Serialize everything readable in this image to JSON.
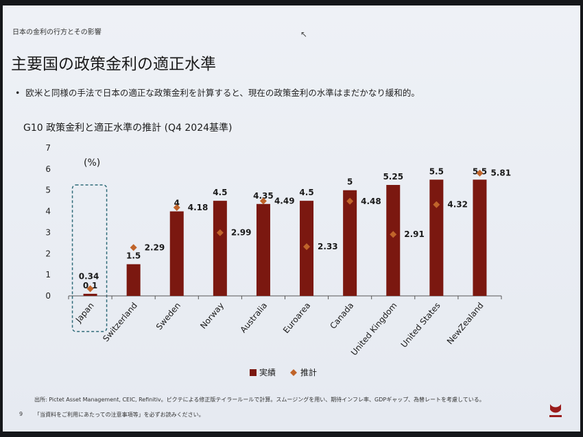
{
  "header": {
    "text": "日本の金利の行方とその影響"
  },
  "slide_title": "主要国の政策金利の適正水準",
  "bullet": "欧米と同様の手法で日本の適正な政策金利を計算すると、現在の政策金利の水準はまだかなり緩和的。",
  "footer": {
    "source": "出所: Pictet Asset Management, CEIC, Refinitiv。ピクテによる修正版テイラールールで計算。スムージングを用い、期待インフレ率、GDPギャップ、為替レートを考慮している。",
    "note": "「当資料をご利用にあたっての注意事項等」を必ずお読みください。",
    "page": "9"
  },
  "colors": {
    "bar": "#7b1810",
    "marker": "#c0642a",
    "highlight_box": "#2d6a78",
    "axis": "#555555"
  },
  "chart_data": {
    "type": "bar",
    "title": "G10 政策金利と適正水準の推計 (Q4 2024基準)",
    "unit_label": "(%)",
    "categories": [
      "Japan",
      "Switzerland",
      "Sweden",
      "Norway",
      "Australia",
      "Euroarea",
      "Canada",
      "United Kingdom",
      "United States",
      "NewZealand"
    ],
    "series": [
      {
        "name": "実績",
        "kind": "bar",
        "values": [
          0.1,
          1.5,
          4,
          4.5,
          4.35,
          4.5,
          5,
          5.25,
          5.5,
          5.5
        ],
        "labels": [
          "0.1",
          "1.5",
          "4",
          "4.5",
          "4.35",
          "4.5",
          "5",
          "5.25",
          "5.5",
          "5.5"
        ]
      },
      {
        "name": "推計",
        "kind": "marker",
        "values": [
          0.34,
          2.29,
          4.18,
          2.99,
          4.49,
          2.33,
          4.48,
          2.91,
          4.32,
          5.81
        ],
        "labels": [
          "0.34",
          "2.29",
          "4.18",
          "2.99",
          "4.49",
          "2.33",
          "4.48",
          "2.91",
          "4.32",
          "5.81"
        ]
      }
    ],
    "ylim": [
      0,
      7
    ],
    "yticks": [
      "0",
      "1",
      "2",
      "3",
      "4",
      "5",
      "6",
      "7"
    ],
    "highlighted_category": "Japan",
    "legend_position": "bottom-center",
    "grid": false
  }
}
